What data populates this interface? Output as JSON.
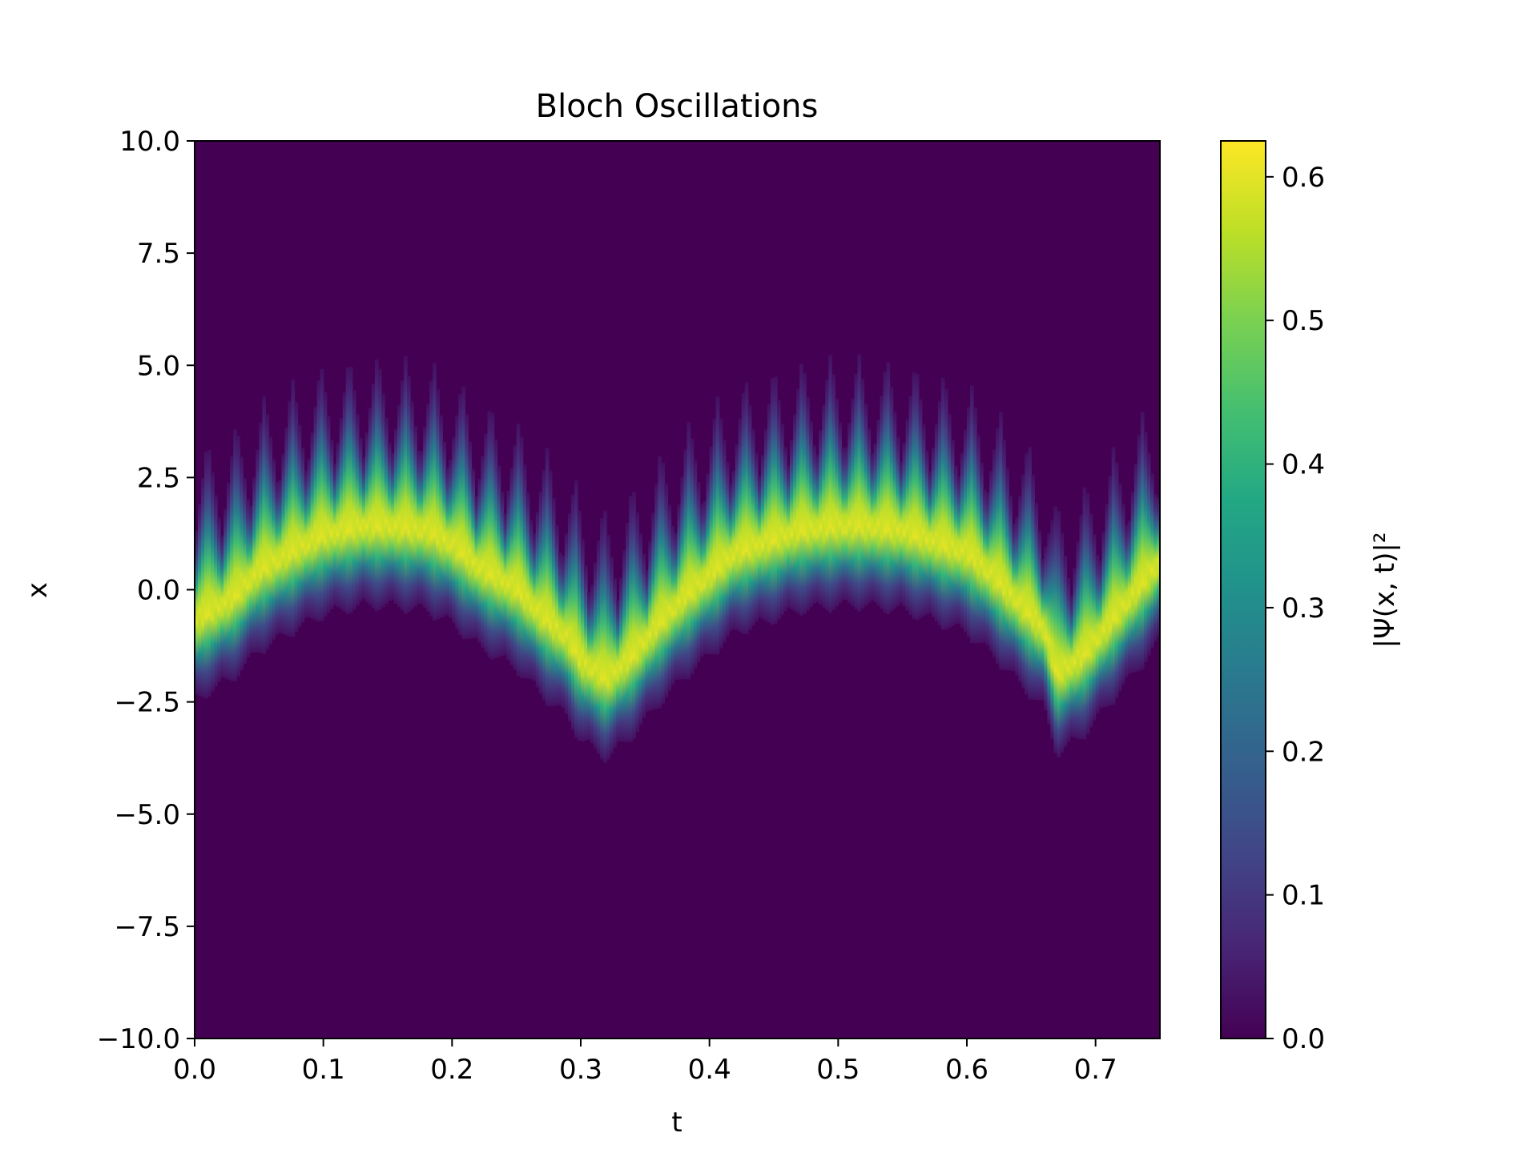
{
  "chart_data": {
    "type": "heatmap",
    "title": "Bloch Oscillations",
    "xlabel": "t",
    "ylabel": "x",
    "xlim": [
      0.0,
      0.75
    ],
    "ylim": [
      -10.0,
      10.0
    ],
    "x_ticks": [
      "0.0",
      "0.1",
      "0.2",
      "0.3",
      "0.4",
      "0.5",
      "0.6",
      "0.7"
    ],
    "y_ticks": [
      "10.0",
      "7.5",
      "5.0",
      "2.5",
      "0.0",
      "−2.5",
      "−5.0",
      "−7.5",
      "−10.0"
    ],
    "colorbar": {
      "label": "|Ψ(x, t)|²",
      "range": [
        0.0,
        0.625
      ],
      "ticks": [
        "0.0",
        "0.1",
        "0.2",
        "0.3",
        "0.4",
        "0.5",
        "0.6"
      ],
      "colormap": "viridis"
    },
    "peak_center_track": {
      "t": [
        0.0,
        0.03,
        0.05,
        0.08,
        0.1,
        0.13,
        0.15,
        0.18,
        0.2,
        0.22,
        0.25,
        0.27,
        0.29,
        0.3,
        0.32,
        0.34,
        0.36,
        0.38,
        0.4,
        0.42,
        0.45,
        0.47,
        0.5,
        0.52,
        0.55,
        0.57,
        0.6,
        0.62,
        0.64,
        0.66,
        0.67,
        0.69,
        0.71,
        0.73,
        0.75
      ],
      "x": [
        -0.7,
        -0.2,
        0.4,
        0.9,
        1.2,
        1.4,
        1.4,
        1.3,
        1.0,
        0.5,
        0.0,
        -0.6,
        -1.1,
        -1.6,
        -2.0,
        -1.5,
        -0.8,
        -0.2,
        0.3,
        0.8,
        1.1,
        1.3,
        1.4,
        1.4,
        1.3,
        1.1,
        0.8,
        0.3,
        -0.3,
        -0.9,
        -1.9,
        -1.5,
        -0.8,
        -0.1,
        0.6
      ]
    },
    "spike_times": [
      0.01,
      0.032,
      0.054,
      0.076,
      0.098,
      0.12,
      0.142,
      0.164,
      0.186,
      0.208,
      0.23,
      0.252,
      0.274,
      0.296,
      0.318,
      0.34,
      0.362,
      0.384,
      0.406,
      0.428,
      0.45,
      0.472,
      0.494,
      0.516,
      0.538,
      0.56,
      0.582,
      0.604,
      0.626,
      0.648,
      0.67,
      0.692,
      0.714,
      0.736
    ],
    "background_value": 0.0,
    "peak_value": 0.6
  }
}
